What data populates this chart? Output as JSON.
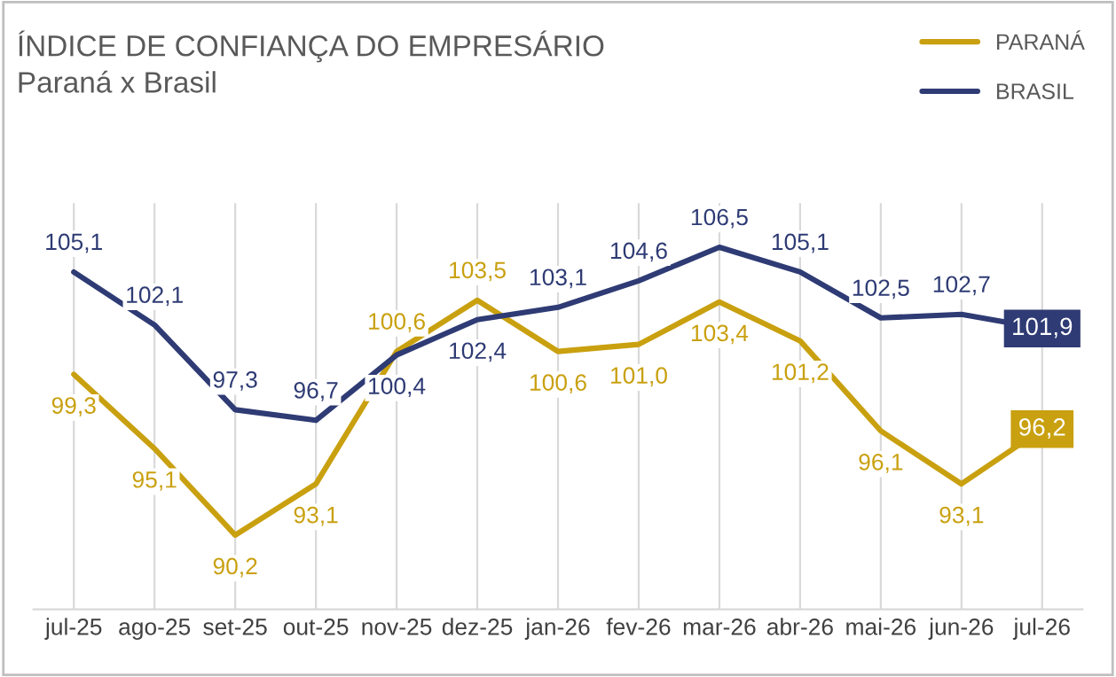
{
  "chart_data": {
    "type": "line",
    "title": "ÍNDICE DE CONFIANÇA DO EMPRESÁRIO",
    "subtitle": "Paraná x Brasil",
    "categories": [
      "jul-25",
      "ago-25",
      "set-25",
      "out-25",
      "nov-25",
      "dez-25",
      "jan-26",
      "fev-26",
      "mar-26",
      "abr-26",
      "mai-26",
      "jun-26",
      "jul-26"
    ],
    "series": [
      {
        "name": "PARANÁ",
        "color": "#c9a00f",
        "values": [
          99.3,
          95.1,
          90.2,
          93.1,
          100.6,
          103.5,
          100.6,
          101.0,
          103.4,
          101.2,
          96.1,
          93.1,
          96.2
        ],
        "value_labels": [
          "99,3",
          "95,1",
          "90,2",
          "93,1",
          "100,6",
          "103,5",
          "100,6",
          "101,0",
          "103,4",
          "101,2",
          "96,1",
          "93,1",
          "96,2"
        ]
      },
      {
        "name": "BRASIL",
        "color": "#2e3b74",
        "values": [
          105.1,
          102.1,
          97.3,
          96.7,
          100.4,
          102.4,
          103.1,
          104.6,
          106.5,
          105.1,
          102.5,
          102.7,
          101.9
        ],
        "value_labels": [
          "105,1",
          "102,1",
          "97,3",
          "96,7",
          "100,4",
          "102,4",
          "103,1",
          "104,6",
          "106,5",
          "105,1",
          "102,5",
          "102,7",
          "101,9"
        ]
      }
    ],
    "ylim": [
      86,
      109
    ],
    "tick_labels": "x",
    "grid": "x",
    "legend": "top right",
    "marker": "none",
    "line_style": "solid"
  }
}
